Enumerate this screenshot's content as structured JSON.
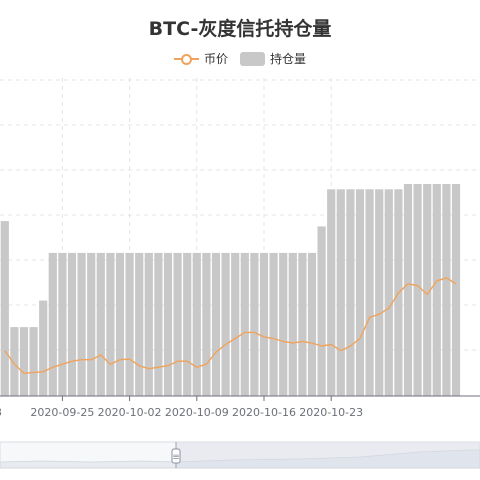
{
  "chart_data": {
    "type": "bar",
    "title": "BTC-灰度信托持仓量",
    "legend_position": "top-center",
    "grid": true,
    "series": [
      {
        "name": "币价",
        "type": "line",
        "color": "#f0a35c",
        "values": [
          11900,
          11450,
          11150,
          11180,
          11200,
          11350,
          11450,
          11550,
          11600,
          11600,
          11750,
          11450,
          11600,
          11620,
          11400,
          11300,
          11350,
          11400,
          11550,
          11550,
          11350,
          11450,
          11850,
          12100,
          12300,
          12500,
          12500,
          12350,
          12300,
          12200,
          12150,
          12200,
          12150,
          12050,
          12100,
          11900,
          12050,
          12300,
          13000,
          13100,
          13300,
          13800,
          14100,
          14050,
          13750,
          14200,
          14300,
          14100
        ]
      },
      {
        "name": "持仓量",
        "type": "bar",
        "color": "#c8c8c8",
        "values": [
          461500,
          451500,
          451500,
          451500,
          454000,
          458500,
          458500,
          458500,
          458500,
          458500,
          458500,
          458500,
          458500,
          458500,
          458500,
          458500,
          458500,
          458500,
          458500,
          458500,
          458500,
          458500,
          458500,
          458500,
          458500,
          458500,
          458500,
          458500,
          458500,
          458500,
          458500,
          458500,
          458500,
          461000,
          464500,
          464500,
          464500,
          464500,
          464500,
          464500,
          464500,
          464500,
          465000,
          465000,
          465000,
          465000,
          465000,
          465000
        ]
      }
    ],
    "x_tick_labels": [
      "2020-09-25",
      "2020-10-02",
      "2020-10-09",
      "2020-10-16",
      "2020-10-23"
    ],
    "partial_left_label": "3",
    "y_range_bars": [
      445000,
      475000
    ],
    "y_range_price": [
      10400,
      20900
    ]
  },
  "slider": {
    "handle_label": "≡"
  }
}
